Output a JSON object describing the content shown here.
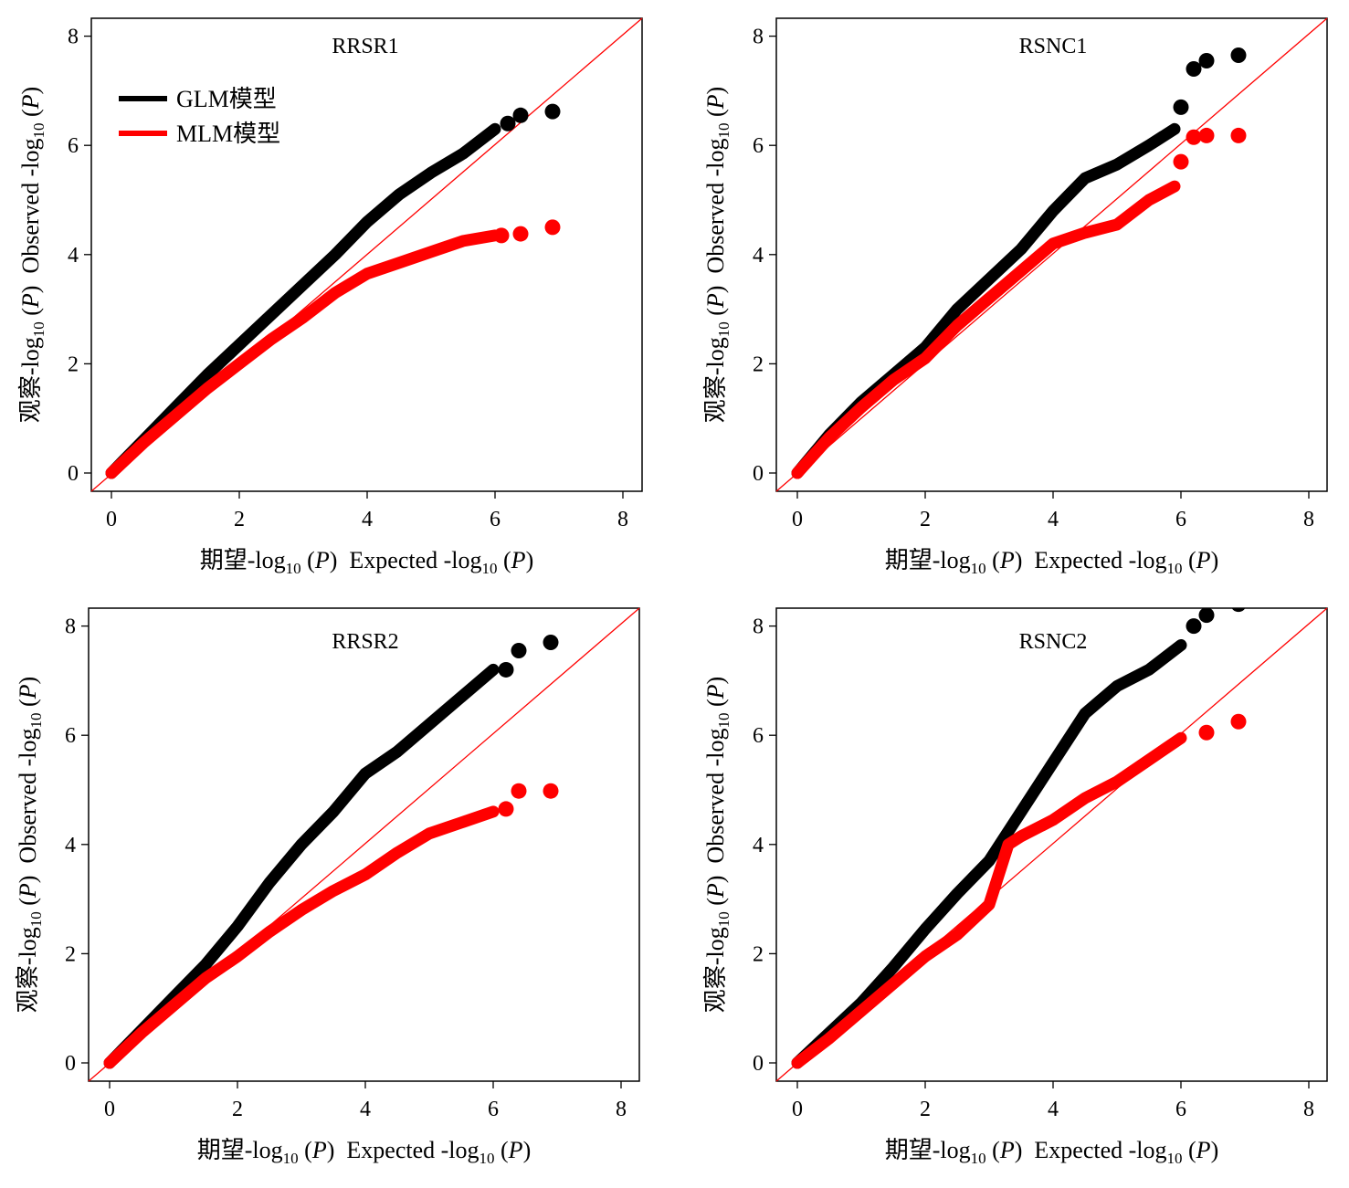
{
  "legend": [
    {
      "label": "GLM模型",
      "color": "#000000"
    },
    {
      "label": "MLM模型",
      "color": "#ff0000"
    }
  ],
  "labels": {
    "x_cn": "期望-log",
    "x_en": "Expected -log",
    "y_cn": "观察-log",
    "y_en": "Observed -log",
    "sub": "10",
    "p_open": " (",
    "p_var": "P",
    "p_close": ")"
  },
  "chart_data": [
    {
      "type": "scatter",
      "title": "RRSR1",
      "xlim": [
        0,
        8
      ],
      "ylim": [
        0,
        8
      ],
      "xticks": [
        0,
        2,
        4,
        6,
        8
      ],
      "yticks": [
        0,
        2,
        4,
        6,
        8
      ],
      "diagonal": true,
      "series": [
        {
          "name": "GLM模型",
          "color": "#000000",
          "line": [
            [
              0,
              0
            ],
            [
              0.5,
              0.6
            ],
            [
              1,
              1.2
            ],
            [
              1.5,
              1.8
            ],
            [
              2,
              2.35
            ],
            [
              2.5,
              2.9
            ],
            [
              3,
              3.45
            ],
            [
              3.5,
              4.0
            ],
            [
              4,
              4.6
            ],
            [
              4.5,
              5.1
            ],
            [
              5,
              5.5
            ],
            [
              5.5,
              5.85
            ],
            [
              6,
              6.3
            ]
          ],
          "points": [
            [
              6.2,
              6.4
            ],
            [
              6.4,
              6.55
            ],
            [
              6.9,
              6.62
            ]
          ]
        },
        {
          "name": "MLM模型",
          "color": "#ff0000",
          "line": [
            [
              0,
              0
            ],
            [
              0.5,
              0.55
            ],
            [
              1,
              1.05
            ],
            [
              1.5,
              1.55
            ],
            [
              2,
              2.0
            ],
            [
              2.5,
              2.45
            ],
            [
              3,
              2.85
            ],
            [
              3.5,
              3.3
            ],
            [
              4,
              3.65
            ],
            [
              4.5,
              3.85
            ],
            [
              5,
              4.05
            ],
            [
              5.5,
              4.25
            ],
            [
              6,
              4.35
            ]
          ],
          "points": [
            [
              6.1,
              4.35
            ],
            [
              6.4,
              4.38
            ],
            [
              6.9,
              4.5
            ]
          ]
        }
      ]
    },
    {
      "type": "scatter",
      "title": "RSNC1",
      "xlim": [
        0,
        8
      ],
      "ylim": [
        0,
        8
      ],
      "xticks": [
        0,
        2,
        4,
        6,
        8
      ],
      "yticks": [
        0,
        2,
        4,
        6,
        8
      ],
      "diagonal": true,
      "series": [
        {
          "name": "GLM模型",
          "color": "#000000",
          "line": [
            [
              0,
              0
            ],
            [
              0.5,
              0.7
            ],
            [
              1,
              1.3
            ],
            [
              1.5,
              1.8
            ],
            [
              2,
              2.3
            ],
            [
              2.5,
              3.0
            ],
            [
              3,
              3.55
            ],
            [
              3.5,
              4.1
            ],
            [
              4,
              4.8
            ],
            [
              4.5,
              5.4
            ],
            [
              5,
              5.65
            ],
            [
              5.5,
              6.0
            ],
            [
              5.9,
              6.3
            ]
          ],
          "points": [
            [
              6.0,
              6.7
            ],
            [
              6.2,
              7.4
            ],
            [
              6.4,
              7.55
            ],
            [
              6.9,
              7.65
            ]
          ]
        },
        {
          "name": "MLM模型",
          "color": "#ff0000",
          "line": [
            [
              0,
              0
            ],
            [
              0.5,
              0.65
            ],
            [
              1,
              1.2
            ],
            [
              1.5,
              1.7
            ],
            [
              2,
              2.1
            ],
            [
              2.5,
              2.7
            ],
            [
              3,
              3.2
            ],
            [
              3.5,
              3.7
            ],
            [
              4,
              4.2
            ],
            [
              4.5,
              4.4
            ],
            [
              5,
              4.55
            ],
            [
              5.5,
              5.0
            ],
            [
              5.9,
              5.25
            ]
          ],
          "points": [
            [
              6.0,
              5.7
            ],
            [
              6.2,
              6.15
            ],
            [
              6.4,
              6.18
            ],
            [
              6.9,
              6.18
            ]
          ]
        }
      ]
    },
    {
      "type": "scatter",
      "title": "RRSR2",
      "xlim": [
        0,
        8
      ],
      "ylim": [
        0,
        8
      ],
      "xticks": [
        0,
        2,
        4,
        6,
        8
      ],
      "yticks": [
        0,
        2,
        4,
        6,
        8
      ],
      "diagonal": true,
      "series": [
        {
          "name": "GLM模型",
          "color": "#000000",
          "line": [
            [
              0,
              0
            ],
            [
              0.5,
              0.6
            ],
            [
              1,
              1.2
            ],
            [
              1.5,
              1.8
            ],
            [
              2,
              2.5
            ],
            [
              2.5,
              3.3
            ],
            [
              3,
              4.0
            ],
            [
              3.5,
              4.6
            ],
            [
              4,
              5.3
            ],
            [
              4.5,
              5.7
            ],
            [
              5,
              6.2
            ],
            [
              5.5,
              6.7
            ],
            [
              6,
              7.2
            ]
          ],
          "points": [
            [
              6.2,
              7.2
            ],
            [
              6.4,
              7.55
            ],
            [
              6.9,
              7.7
            ]
          ]
        },
        {
          "name": "MLM模型",
          "color": "#ff0000",
          "line": [
            [
              0,
              0
            ],
            [
              0.5,
              0.55
            ],
            [
              1,
              1.05
            ],
            [
              1.5,
              1.55
            ],
            [
              2,
              1.95
            ],
            [
              2.5,
              2.4
            ],
            [
              3,
              2.8
            ],
            [
              3.5,
              3.15
            ],
            [
              4,
              3.45
            ],
            [
              4.5,
              3.85
            ],
            [
              5,
              4.2
            ],
            [
              5.5,
              4.4
            ],
            [
              6,
              4.6
            ]
          ],
          "points": [
            [
              6.2,
              4.65
            ],
            [
              6.4,
              4.98
            ],
            [
              6.9,
              4.98
            ]
          ]
        }
      ]
    },
    {
      "type": "scatter",
      "title": "RSNC2",
      "xlim": [
        0,
        8
      ],
      "ylim": [
        0,
        8
      ],
      "xticks": [
        0,
        2,
        4,
        6,
        8
      ],
      "yticks": [
        0,
        2,
        4,
        6,
        8
      ],
      "diagonal": true,
      "series": [
        {
          "name": "GLM模型",
          "color": "#000000",
          "line": [
            [
              0,
              0
            ],
            [
              0.5,
              0.55
            ],
            [
              1,
              1.1
            ],
            [
              1.5,
              1.75
            ],
            [
              2,
              2.45
            ],
            [
              2.5,
              3.1
            ],
            [
              3,
              3.7
            ],
            [
              3.5,
              4.6
            ],
            [
              4,
              5.5
            ],
            [
              4.5,
              6.4
            ],
            [
              5,
              6.9
            ],
            [
              5.5,
              7.2
            ],
            [
              6,
              7.65
            ]
          ],
          "points": [
            [
              6.2,
              8.0
            ],
            [
              6.4,
              8.2
            ],
            [
              6.9,
              8.4
            ]
          ]
        },
        {
          "name": "MLM模型",
          "color": "#ff0000",
          "line": [
            [
              0,
              0
            ],
            [
              0.5,
              0.45
            ],
            [
              1,
              0.95
            ],
            [
              1.5,
              1.45
            ],
            [
              2,
              1.95
            ],
            [
              2.5,
              2.35
            ],
            [
              3,
              2.9
            ],
            [
              3.3,
              4.0
            ],
            [
              3.5,
              4.15
            ],
            [
              4,
              4.45
            ],
            [
              4.5,
              4.85
            ],
            [
              5,
              5.15
            ],
            [
              5.5,
              5.55
            ],
            [
              6,
              5.95
            ]
          ],
          "points": [
            [
              6.4,
              6.05
            ],
            [
              6.9,
              6.25
            ]
          ]
        }
      ]
    }
  ]
}
